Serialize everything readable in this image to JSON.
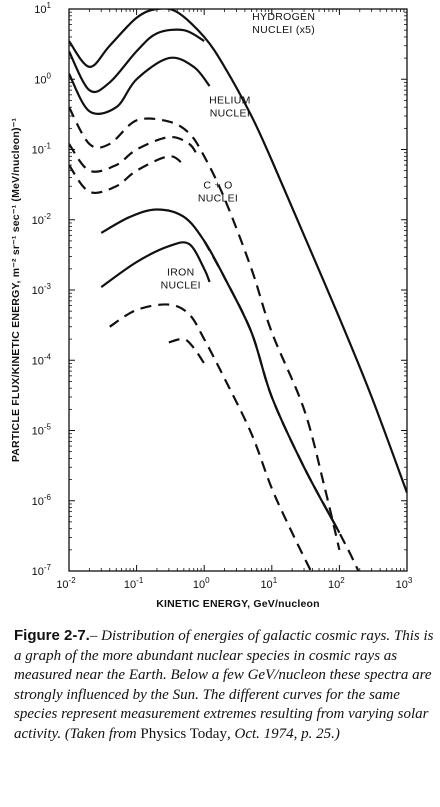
{
  "chart_data": {
    "type": "line",
    "x_scale": "log",
    "y_scale": "log",
    "xlim": [
      0.01,
      1000
    ],
    "ylim": [
      1e-07,
      10
    ],
    "xlabel": "KINETIC ENERGY, GeV/nucleon",
    "ylabel": "PARTICLE FLUX/KINETIC ENERGY,  m⁻² sr⁻¹ sec⁻¹ (MeV/nucleon)⁻¹",
    "x_ticks": [
      {
        "value": 0.01,
        "base": "10",
        "exp": "-2"
      },
      {
        "value": 0.1,
        "base": "10",
        "exp": "-1"
      },
      {
        "value": 1,
        "base": "10",
        "exp": "0"
      },
      {
        "value": 10,
        "base": "10",
        "exp": "1"
      },
      {
        "value": 100,
        "base": "10",
        "exp": "2"
      },
      {
        "value": 1000,
        "base": "10",
        "exp": "3"
      }
    ],
    "y_ticks": [
      {
        "value": 10,
        "base": "10",
        "exp": "1"
      },
      {
        "value": 1,
        "base": "10",
        "exp": "0"
      },
      {
        "value": 0.1,
        "base": "10",
        "exp": "-1"
      },
      {
        "value": 0.01,
        "base": "10",
        "exp": "-2"
      },
      {
        "value": 0.001,
        "base": "10",
        "exp": "-3"
      },
      {
        "value": 0.0001,
        "base": "10",
        "exp": "-4"
      },
      {
        "value": 1e-05,
        "base": "10",
        "exp": "-5"
      },
      {
        "value": 1e-06,
        "base": "10",
        "exp": "-6"
      },
      {
        "value": 1e-07,
        "base": "10",
        "exp": "-7"
      }
    ],
    "species_labels": [
      {
        "lines": [
          "HYDROGEN",
          "NUCLEI (x5)"
        ],
        "x": 15,
        "y": 7
      },
      {
        "lines": [
          "HELIUM",
          "NUCLEI"
        ],
        "x": 2.4,
        "y": 0.45
      },
      {
        "lines": [
          "C + O",
          "NUCLEI"
        ],
        "x": 1.6,
        "y": 0.028
      },
      {
        "lines": [
          "IRON",
          "NUCLEI"
        ],
        "x": 0.45,
        "y": 0.0016
      }
    ],
    "series": [
      {
        "species": "hydrogen",
        "style": "solid",
        "points": [
          [
            0.01,
            3.5
          ],
          [
            0.02,
            1.5
          ],
          [
            0.04,
            3.0
          ],
          [
            0.1,
            7.5
          ],
          [
            0.2,
            10
          ],
          [
            0.4,
            9
          ],
          [
            1,
            4
          ],
          [
            2,
            1.5
          ],
          [
            5,
            0.3
          ],
          [
            10,
            0.07
          ],
          [
            30,
            0.006
          ],
          [
            100,
            0.0004
          ],
          [
            300,
            3e-05
          ],
          [
            1000,
            1.3e-06
          ]
        ]
      },
      {
        "species": "hydrogen",
        "style": "solid",
        "points": [
          [
            0.01,
            2.5
          ],
          [
            0.02,
            0.7
          ],
          [
            0.04,
            0.9
          ],
          [
            0.1,
            2.5
          ],
          [
            0.2,
            4.5
          ],
          [
            0.5,
            5
          ],
          [
            1,
            3.5
          ]
        ]
      },
      {
        "species": "hydrogen",
        "style": "solid",
        "points": [
          [
            0.01,
            1.2
          ],
          [
            0.02,
            0.35
          ],
          [
            0.05,
            0.4
          ],
          [
            0.1,
            1.0
          ],
          [
            0.3,
            2.0
          ],
          [
            0.7,
            1.5
          ],
          [
            1.2,
            0.8
          ]
        ]
      },
      {
        "species": "helium",
        "style": "dashed",
        "points": [
          [
            0.01,
            0.4
          ],
          [
            0.02,
            0.12
          ],
          [
            0.04,
            0.12
          ],
          [
            0.1,
            0.26
          ],
          [
            0.3,
            0.25
          ],
          [
            0.6,
            0.17
          ],
          [
            1,
            0.08
          ],
          [
            2,
            0.02
          ],
          [
            5,
            0.002
          ],
          [
            10,
            0.00025
          ],
          [
            30,
            2e-05
          ],
          [
            60,
            1.6e-06
          ],
          [
            100,
            2e-07
          ]
        ]
      },
      {
        "species": "helium",
        "style": "dashed",
        "points": [
          [
            0.01,
            0.12
          ],
          [
            0.02,
            0.05
          ],
          [
            0.05,
            0.06
          ],
          [
            0.1,
            0.1
          ],
          [
            0.3,
            0.15
          ],
          [
            0.6,
            0.12
          ],
          [
            0.8,
            0.08
          ]
        ]
      },
      {
        "species": "helium",
        "style": "dashed",
        "points": [
          [
            0.01,
            0.06
          ],
          [
            0.02,
            0.025
          ],
          [
            0.05,
            0.03
          ],
          [
            0.1,
            0.05
          ],
          [
            0.3,
            0.08
          ],
          [
            0.5,
            0.06
          ]
        ]
      },
      {
        "species": "c+o",
        "style": "solid",
        "points": [
          [
            0.03,
            0.0065
          ],
          [
            0.08,
            0.011
          ],
          [
            0.2,
            0.014
          ],
          [
            0.5,
            0.011
          ],
          [
            1,
            0.005
          ],
          [
            2,
            0.0015
          ],
          [
            5,
            0.00025
          ],
          [
            10,
            3e-05
          ],
          [
            30,
            3e-06
          ],
          [
            100,
            3.5e-07
          ]
        ]
      },
      {
        "species": "c+o",
        "style": "dashed",
        "points": [
          [
            1,
            0.005
          ],
          [
            2,
            0.0015
          ],
          [
            5,
            0.00025
          ],
          [
            10,
            3e-05
          ],
          [
            30,
            3e-06
          ],
          [
            100,
            3.5e-07
          ],
          [
            200,
            9e-08
          ],
          [
            300,
            3e-08
          ]
        ]
      },
      {
        "species": "iron",
        "style": "solid",
        "points": [
          [
            0.03,
            0.0011
          ],
          [
            0.1,
            0.0025
          ],
          [
            0.3,
            0.0042
          ],
          [
            0.6,
            0.0045
          ],
          [
            1,
            0.002
          ],
          [
            1.2,
            0.0013
          ]
        ]
      },
      {
        "species": "iron",
        "style": "dashed",
        "points": [
          [
            0.04,
            0.0003
          ],
          [
            0.1,
            0.00052
          ],
          [
            0.3,
            0.00062
          ],
          [
            0.6,
            0.00045
          ],
          [
            1,
            0.0002
          ],
          [
            2,
            5.5e-05
          ],
          [
            5,
            9e-06
          ],
          [
            10,
            1.5e-06
          ],
          [
            20,
            3.5e-07
          ],
          [
            40,
            9e-08
          ]
        ]
      },
      {
        "species": "iron",
        "style": "dashed",
        "points": [
          [
            0.3,
            0.00018
          ],
          [
            0.5,
            0.0002
          ],
          [
            0.7,
            0.00015
          ],
          [
            1,
            9e-05
          ]
        ]
      }
    ]
  },
  "caption": {
    "head": "Figure 2-7.",
    "dash": "–",
    "body": " Distribution of energies of galactic cosmic rays. This is a graph of the more abundant nuclear species in cosmic rays as measured near the Earth. Below a few GeV/nucleon these spectra are strongly influenced by the Sun. The different curves for the same species represent measurement extremes resulting from varying solar activity. (Taken from ",
    "source_journal": "Physics Today",
    "source_tail": ", Oct. 1974, p. 25.)"
  }
}
